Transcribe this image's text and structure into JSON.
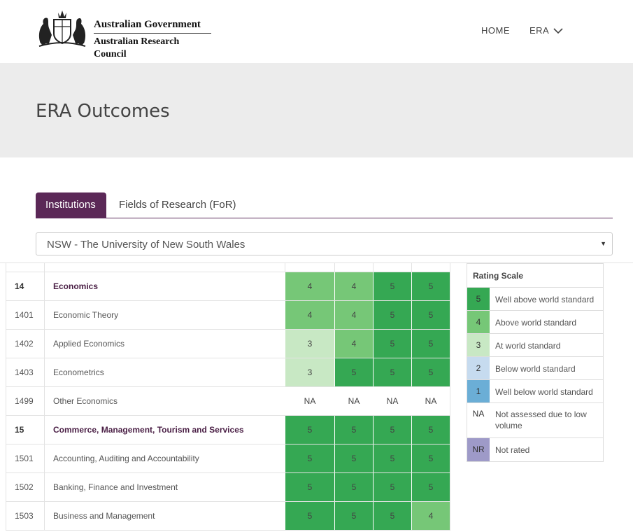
{
  "header": {
    "org_line1": "Australian Government",
    "org_line2": "Australian Research Council",
    "nav": {
      "home": "HOME",
      "era": "ERA"
    }
  },
  "page": {
    "title": "ERA Outcomes"
  },
  "tabs": [
    {
      "label": "Institutions",
      "active": true
    },
    {
      "label": "Fields of Research (FoR)",
      "active": false
    }
  ],
  "institution_select": {
    "value": "NSW - The University of New South Wales",
    "arrow": "▼"
  },
  "colors": {
    "rating_5": "#35a853",
    "rating_4": "#76c777",
    "rating_3": "#c8e8c4",
    "rating_2": "#c6dbef",
    "rating_1": "#6baed6",
    "rating_na": "#ffffff",
    "rating_nr": "#9e9ac8",
    "accent": "#5b2857"
  },
  "table": {
    "rows": [
      {
        "code": "14",
        "name": "Economics",
        "bold": true,
        "ratings": [
          "4",
          "4",
          "5",
          "5"
        ]
      },
      {
        "code": "1401",
        "name": "Economic Theory",
        "bold": false,
        "ratings": [
          "4",
          "4",
          "5",
          "5"
        ]
      },
      {
        "code": "1402",
        "name": "Applied Economics",
        "bold": false,
        "ratings": [
          "3",
          "4",
          "5",
          "5"
        ]
      },
      {
        "code": "1403",
        "name": "Econometrics",
        "bold": false,
        "ratings": [
          "3",
          "5",
          "5",
          "5"
        ]
      },
      {
        "code": "1499",
        "name": "Other Economics",
        "bold": false,
        "ratings": [
          "NA",
          "NA",
          "NA",
          "NA"
        ]
      },
      {
        "code": "15",
        "name": "Commerce, Management, Tourism and Services",
        "bold": true,
        "ratings": [
          "5",
          "5",
          "5",
          "5"
        ]
      },
      {
        "code": "1501",
        "name": "Accounting, Auditing and Accountability",
        "bold": false,
        "ratings": [
          "5",
          "5",
          "5",
          "5"
        ]
      },
      {
        "code": "1502",
        "name": "Banking, Finance and Investment",
        "bold": false,
        "ratings": [
          "5",
          "5",
          "5",
          "5"
        ]
      },
      {
        "code": "1503",
        "name": "Business and Management",
        "bold": false,
        "ratings": [
          "5",
          "5",
          "5",
          "4"
        ]
      }
    ]
  },
  "legend": {
    "title": "Rating Scale",
    "items": [
      {
        "code": "5",
        "label": "Well above world standard",
        "color_key": "rating_5"
      },
      {
        "code": "4",
        "label": "Above world standard",
        "color_key": "rating_4"
      },
      {
        "code": "3",
        "label": "At world standard",
        "color_key": "rating_3"
      },
      {
        "code": "2",
        "label": "Below world standard",
        "color_key": "rating_2"
      },
      {
        "code": "1",
        "label": "Well below world standard",
        "color_key": "rating_1"
      },
      {
        "code": "NA",
        "label": "Not assessed due to low volume",
        "color_key": "rating_na"
      },
      {
        "code": "NR",
        "label": "Not rated",
        "color_key": "rating_nr"
      }
    ]
  }
}
